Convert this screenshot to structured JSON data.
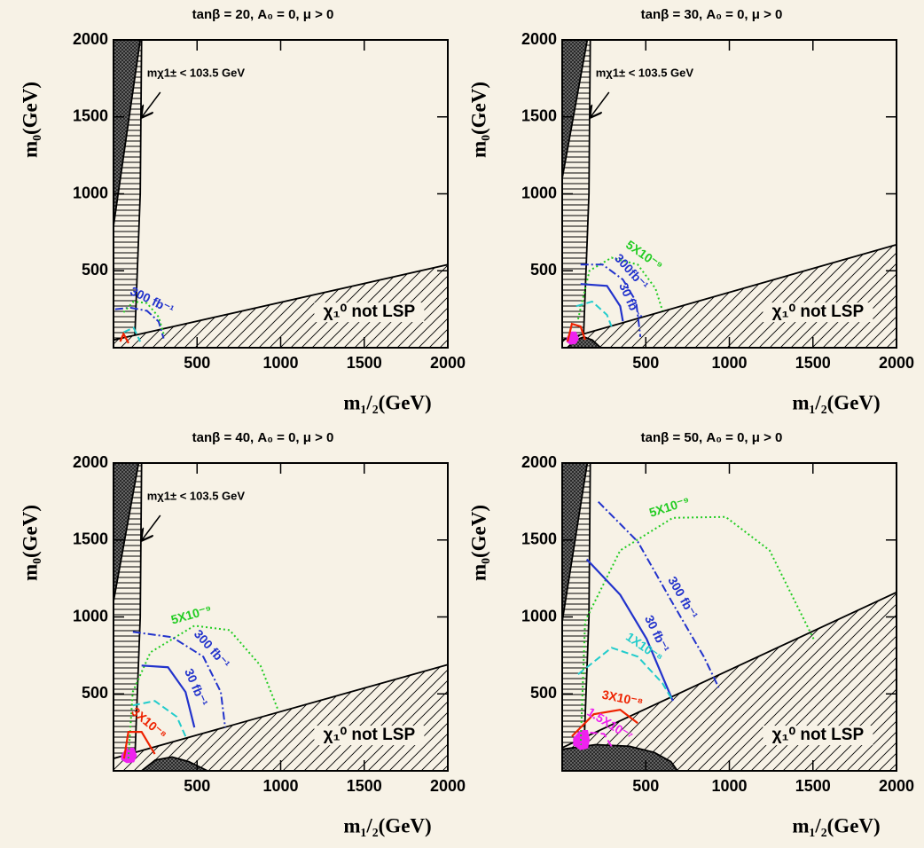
{
  "chart_data": [
    {
      "type": "line",
      "title": "tanβ = 20, A₀ = 0, μ > 0",
      "xlabel": "m₁/₂(GeV)",
      "ylabel": "m₀(GeV)",
      "xlim": [
        0,
        2000
      ],
      "ylim": [
        0,
        2000
      ],
      "xticks": [
        500,
        1000,
        1500,
        2000
      ],
      "yticks": [
        500,
        1000,
        1500,
        2000
      ],
      "chargino_limit": "mχ1± < 103.5 GeV",
      "lsp_label": "χ₁⁰ not LSP",
      "regions": [
        {
          "pattern": "horizontal",
          "x": [
            0,
            125,
            160,
            168,
            0
          ],
          "y": [
            0,
            0,
            1000,
            2000,
            2000
          ]
        },
        {
          "pattern": "diagonal",
          "x": [
            0,
            2000,
            2000,
            0
          ],
          "y": [
            50,
            540,
            0,
            0
          ]
        },
        {
          "pattern": "dense",
          "x": [
            0,
            160,
            0
          ],
          "y": [
            2000,
            2000,
            790
          ]
        }
      ],
      "series": [
        {
          "name": "300 fb⁻¹",
          "color": "#2233cc",
          "style": "dashdot",
          "x": [
            10,
            100,
            200,
            270,
            300
          ],
          "y": [
            250,
            260,
            240,
            170,
            60
          ]
        },
        {
          "color": "#22cc22",
          "style": "dotted",
          "x": [
            60,
            120,
            200,
            270,
            300
          ],
          "y": [
            230,
            300,
            290,
            200,
            90
          ]
        },
        {
          "color": "#22cccc",
          "style": "dashed",
          "x": [
            60,
            120,
            160
          ],
          "y": [
            100,
            130,
            40
          ]
        },
        {
          "color": "#ee2200",
          "style": "solid",
          "x": [
            40,
            60,
            90
          ],
          "y": [
            40,
            90,
            30
          ]
        }
      ]
    },
    {
      "type": "line",
      "title": "tanβ = 30, A₀ = 0, μ > 0",
      "xlabel": "m₁/₂(GeV)",
      "ylabel": "m₀(GeV)",
      "xlim": [
        0,
        2000
      ],
      "ylim": [
        0,
        2000
      ],
      "xticks": [
        500,
        1000,
        1500,
        2000
      ],
      "yticks": [
        500,
        1000,
        1500,
        2000
      ],
      "chargino_limit": "mχ1± < 103.5 GeV",
      "lsp_label": "χ₁⁰ not LSP",
      "regions": [
        {
          "pattern": "horizontal",
          "x": [
            0,
            125,
            160,
            168,
            0
          ],
          "y": [
            0,
            0,
            1000,
            2000,
            2000
          ]
        },
        {
          "pattern": "diagonal",
          "x": [
            0,
            2000,
            2000,
            0
          ],
          "y": [
            50,
            670,
            0,
            0
          ]
        },
        {
          "pattern": "dense",
          "x": [
            0,
            150,
            0
          ],
          "y": [
            2000,
            2000,
            1100
          ]
        },
        {
          "pattern": "dense",
          "x": [
            30,
            80,
            130,
            180,
            230
          ],
          "y": [
            0,
            50,
            70,
            50,
            0
          ]
        },
        {
          "pattern": "solid",
          "color": "#ee22ee",
          "x": [
            30,
            50,
            80,
            95,
            80,
            50,
            30
          ],
          "y": [
            60,
            100,
            100,
            60,
            30,
            25,
            40
          ]
        }
      ],
      "series": [
        {
          "name": "5X10⁻⁹",
          "color": "#22cc22",
          "style": "dotted",
          "x": [
            95,
            163,
            295,
            452,
            558,
            600
          ],
          "y": [
            185,
            500,
            585,
            540,
            385,
            240
          ]
        },
        {
          "name": "300fb⁻¹",
          "color": "#2233cc",
          "style": "dashdot",
          "x": [
            110,
            242,
            363,
            442,
            468
          ],
          "y": [
            540,
            540,
            443,
            300,
            70
          ]
        },
        {
          "name": "30 fb⁻¹",
          "color": "#2233cc",
          "style": "solid",
          "x": [
            110,
            268,
            347,
            363
          ],
          "y": [
            414,
            402,
            270,
            172
          ]
        },
        {
          "color": "#22cccc",
          "style": "dashed",
          "x": [
            84,
            179,
            268,
            295
          ],
          "y": [
            270,
            300,
            213,
            138
          ]
        },
        {
          "color": "#ee2200",
          "style": "solid",
          "x": [
            32,
            58,
            110,
            137
          ],
          "y": [
            40,
            155,
            138,
            52
          ]
        }
      ]
    },
    {
      "type": "line",
      "title": "tanβ = 40, A₀ = 0, μ > 0",
      "xlabel": "m₁/₂(GeV)",
      "ylabel": "m₀(GeV)",
      "xlim": [
        0,
        2000
      ],
      "ylim": [
        0,
        2000
      ],
      "xticks": [
        500,
        1000,
        1500,
        2000
      ],
      "yticks": [
        500,
        1000,
        1500,
        2000
      ],
      "chargino_limit": "mχ1± < 103.5 GeV",
      "lsp_label": "χ₁⁰ not LSP",
      "regions": [
        {
          "pattern": "horizontal",
          "x": [
            0,
            125,
            160,
            168,
            0
          ],
          "y": [
            0,
            0,
            1000,
            2000,
            2000
          ]
        },
        {
          "pattern": "diagonal",
          "x": [
            0,
            2000,
            2000,
            0
          ],
          "y": [
            80,
            690,
            0,
            0
          ]
        },
        {
          "pattern": "dense",
          "x": [
            0,
            150,
            0
          ],
          "y": [
            2000,
            2000,
            1100
          ]
        },
        {
          "pattern": "dense",
          "x": [
            168,
            250,
            350,
            450,
            563
          ],
          "y": [
            0,
            70,
            90,
            60,
            0
          ]
        },
        {
          "pattern": "solid",
          "color": "#ee22ee",
          "x": [
            50,
            80,
            120,
            135,
            120,
            80,
            50
          ],
          "y": [
            100,
            145,
            145,
            100,
            60,
            55,
            75
          ]
        }
      ],
      "series": [
        {
          "name": "5X10⁻⁹",
          "color": "#22cc22",
          "style": "dotted",
          "x": [
            89,
            115,
            221,
            484,
            695,
            879,
            984
          ],
          "y": [
            80,
            512,
            770,
            943,
            914,
            684,
            397
          ]
        },
        {
          "name": "300 fb⁻¹",
          "color": "#2233cc",
          "style": "dashdot",
          "x": [
            116,
            352,
            537,
            642,
            668
          ],
          "y": [
            903,
            868,
            742,
            512,
            282
          ]
        },
        {
          "name": "30 fb⁻¹",
          "color": "#2233cc",
          "style": "solid",
          "x": [
            168,
            326,
            431,
            484
          ],
          "y": [
            684,
            673,
            512,
            282
          ]
        },
        {
          "color": "#22cccc",
          "style": "dashed",
          "x": [
            116,
            247,
            379,
            431
          ],
          "y": [
            425,
            454,
            351,
            224
          ]
        },
        {
          "name": "3X10⁻⁸",
          "color": "#ee2200",
          "style": "solid",
          "x": [
            63,
            89,
            168,
            247
          ],
          "y": [
            80,
            253,
            253,
            109
          ]
        }
      ]
    },
    {
      "type": "line",
      "title": "tanβ = 50, A₀ = 0, μ > 0",
      "xlabel": "m₁/₂(GeV)",
      "ylabel": "m₀(GeV)",
      "xlim": [
        0,
        2000
      ],
      "ylim": [
        0,
        2000
      ],
      "xticks": [
        500,
        1000,
        1500,
        2000
      ],
      "yticks": [
        500,
        1000,
        1500,
        2000
      ],
      "lsp_label": "χ₁⁰ not LSP",
      "regions": [
        {
          "pattern": "horizontal",
          "x": [
            0,
            125,
            160,
            168,
            0
          ],
          "y": [
            0,
            0,
            1000,
            2000,
            2000
          ]
        },
        {
          "pattern": "diagonal",
          "x": [
            0,
            2000,
            2000,
            0
          ],
          "y": [
            150,
            1160,
            0,
            0
          ]
        },
        {
          "pattern": "dense",
          "x": [
            0,
            150,
            0
          ],
          "y": [
            2000,
            2000,
            970
          ]
        },
        {
          "pattern": "dense",
          "x": [
            0,
            200,
            400,
            550,
            650,
            690,
            0
          ],
          "y": [
            140,
            170,
            160,
            120,
            60,
            0,
            0
          ]
        },
        {
          "pattern": "solid",
          "color": "#ee22ee",
          "x": [
            70,
            110,
            150,
            160,
            150,
            110,
            70
          ],
          "y": [
            210,
            260,
            260,
            200,
            150,
            140,
            170
          ]
        }
      ],
      "series": [
        {
          "name": "5X10⁻⁹",
          "color": "#22cc22",
          "style": "dotted",
          "x": [
            110,
            137,
            347,
            662,
            978,
            1241,
            1504
          ],
          "y": [
            167,
            972,
            1432,
            1644,
            1650,
            1432,
            857
          ]
        },
        {
          "name": "300 fb⁻¹",
          "color": "#2233cc",
          "style": "dashdot",
          "x": [
            216,
            452,
            662,
            847,
            936
          ],
          "y": [
            1748,
            1489,
            1087,
            742,
            541
          ]
        },
        {
          "name": "30 fb⁻¹",
          "color": "#2233cc",
          "style": "solid",
          "x": [
            147,
            347,
            505,
            662
          ],
          "y": [
            1374,
            1144,
            857,
            454
          ]
        },
        {
          "name": "1X10⁻⁸",
          "color": "#22cccc",
          "style": "dashed",
          "x": [
            95,
            295,
            452,
            600,
            662
          ],
          "y": [
            627,
            800,
            742,
            569,
            454
          ]
        },
        {
          "name": "3X10⁻⁸",
          "color": "#ee2200",
          "style": "solid",
          "x": [
            58,
            189,
            347,
            452
          ],
          "y": [
            224,
            368,
            397,
            310
          ]
        },
        {
          "name": "1.5X10⁻⁷",
          "color": "#ee22ee",
          "style": "dashed",
          "x": [
            90,
            150,
            250,
            300
          ],
          "y": [
            150,
            250,
            240,
            150
          ]
        }
      ]
    }
  ]
}
